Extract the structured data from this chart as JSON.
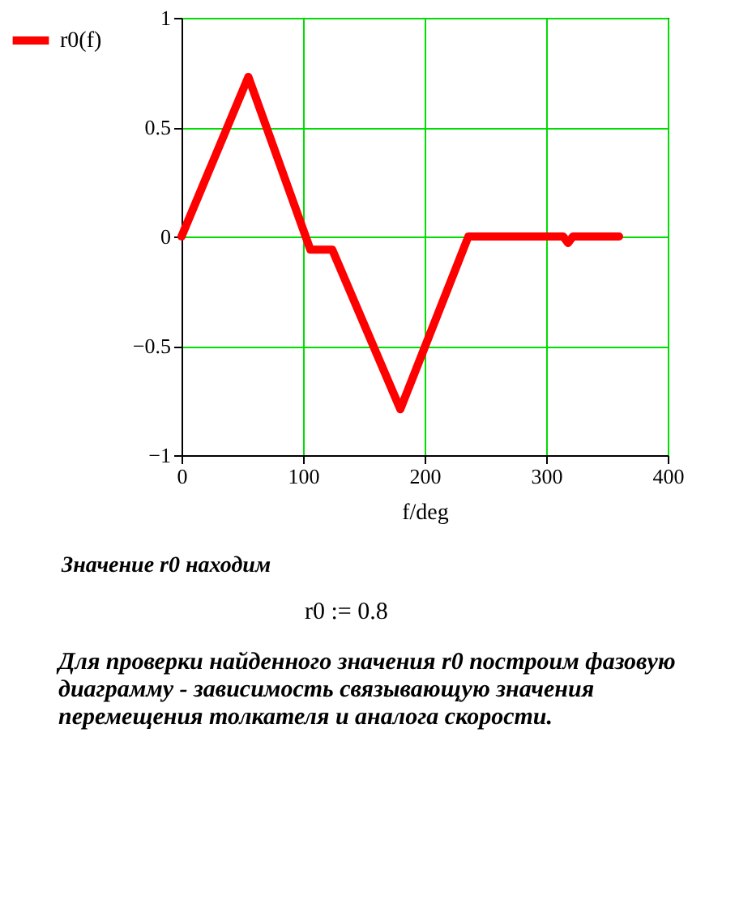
{
  "chart_data": {
    "type": "line",
    "xlabel": "f/deg",
    "x": [
      0,
      55,
      106,
      124,
      180,
      236,
      300,
      314,
      318,
      322,
      360
    ],
    "series": [
      {
        "name": "r0(f)",
        "color": "#ff0000",
        "values": [
          0,
          0.73,
          -0.06,
          -0.06,
          -0.79,
          0,
          0,
          0,
          -0.03,
          0,
          0
        ]
      }
    ],
    "xlim": [
      0,
      400
    ],
    "xticks": [
      0,
      100,
      200,
      300,
      400
    ],
    "ylim": [
      -1,
      1
    ],
    "yticks": [
      -1,
      -0.5,
      0,
      0.5,
      1
    ],
    "grid": true,
    "legend": "left",
    "line_style": "solid",
    "marker": "none",
    "annotations": [
      "Значение r0 находим",
      "r0 := 0.8",
      "Для проверки найденного значения r0 построим фазовую диаграмму - зависимость связывающую значения перемещения толкателя и аналога скорости."
    ]
  }
}
